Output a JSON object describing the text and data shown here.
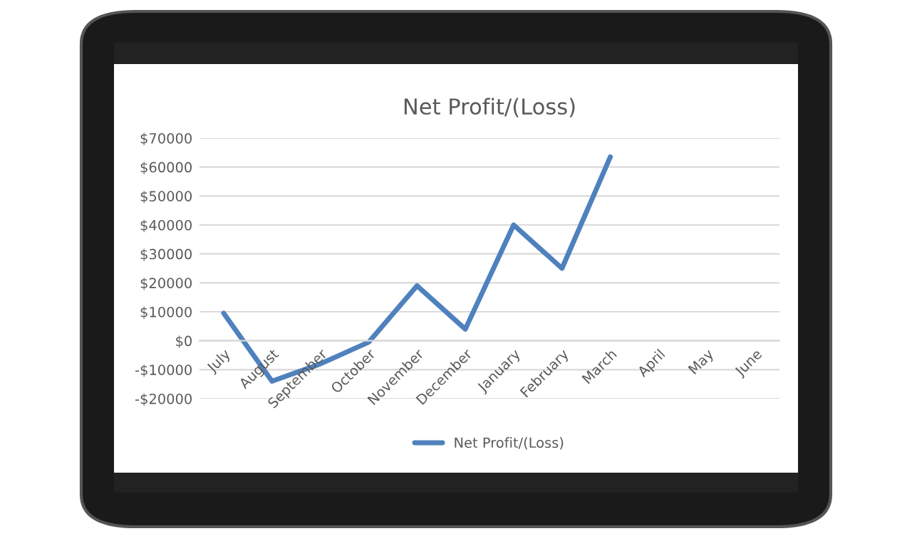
{
  "chart_data": {
    "type": "line",
    "title": "Net Profit/(Loss)",
    "categories": [
      "July",
      "August",
      "September",
      "October",
      "November",
      "December",
      "January",
      "February",
      "March",
      "April",
      "May",
      "June"
    ],
    "series": [
      {
        "name": "Net Profit/(Loss)",
        "color": "#4f81bd",
        "values": [
          9500,
          -14000,
          -8000,
          -500,
          19000,
          4000,
          40000,
          25000,
          63500,
          null,
          null,
          null
        ]
      }
    ],
    "ylim": [
      -20000,
      70000
    ],
    "yticks": [
      {
        "value": -20000,
        "label": "-$20000"
      },
      {
        "value": -10000,
        "label": "-$10000"
      },
      {
        "value": 0,
        "label": "$0"
      },
      {
        "value": 10000,
        "label": "$10000"
      },
      {
        "value": 20000,
        "label": "$20000"
      },
      {
        "value": 30000,
        "label": "$30000"
      },
      {
        "value": 40000,
        "label": "$40000"
      },
      {
        "value": 50000,
        "label": "$50000"
      },
      {
        "value": 60000,
        "label": "$60000"
      },
      {
        "value": 70000,
        "label": "$70000"
      }
    ],
    "grid": "y",
    "legend": "bottom",
    "marker": "none",
    "line_style": "solid"
  }
}
